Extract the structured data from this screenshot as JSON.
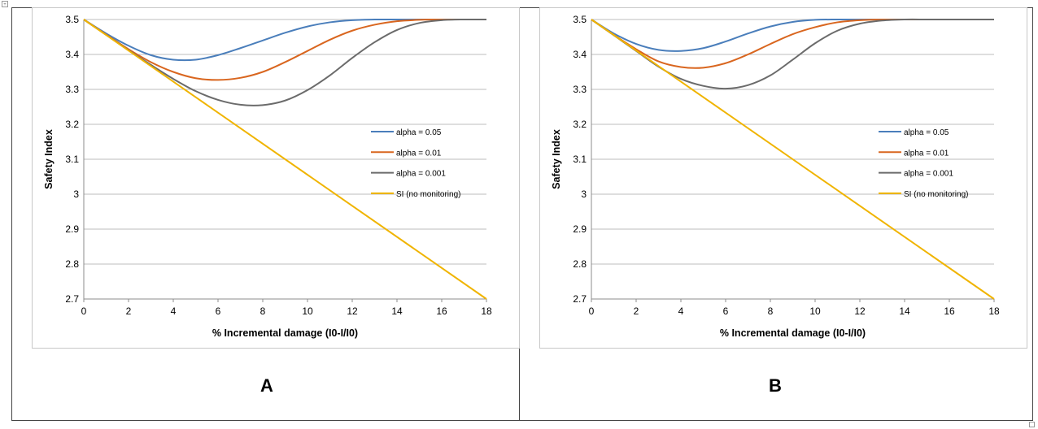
{
  "figure": {
    "labels": [
      "A",
      "B"
    ]
  },
  "chart_data": [
    {
      "type": "line",
      "panel": "A",
      "xlabel": "% Incremental damage (I0-I/I0)",
      "ylabel": "Safety Index",
      "xlim": [
        0,
        18
      ],
      "ylim": [
        2.7,
        3.5
      ],
      "xticks": [
        0,
        2,
        4,
        6,
        8,
        10,
        12,
        14,
        16,
        18
      ],
      "yticks": [
        2.7,
        2.8,
        2.9,
        3,
        3.1,
        3.2,
        3.3,
        3.4,
        3.5
      ],
      "ytick_labels": [
        "2.7",
        "2.8",
        "2.9",
        "3",
        "3.1",
        "3.2",
        "3.3",
        "3.4",
        "3.5"
      ],
      "grid": true,
      "legend_position": "right",
      "series": [
        {
          "name": "alpha = 0.05",
          "color": "#4a7ebb",
          "x": [
            0,
            1,
            2,
            3,
            4,
            5,
            6,
            7,
            8,
            9,
            10,
            11,
            12,
            13,
            14,
            15,
            16,
            17,
            18
          ],
          "values": [
            3.5,
            3.46,
            3.425,
            3.398,
            3.385,
            3.385,
            3.398,
            3.418,
            3.44,
            3.462,
            3.48,
            3.492,
            3.498,
            3.5,
            3.5,
            3.5,
            3.5,
            3.5,
            3.5
          ]
        },
        {
          "name": "alpha = 0.01",
          "color": "#d9661f",
          "x": [
            0,
            1,
            2,
            3,
            4,
            5,
            6,
            7,
            8,
            9,
            10,
            11,
            12,
            13,
            14,
            15,
            16,
            17,
            18
          ],
          "values": [
            3.5,
            3.457,
            3.415,
            3.378,
            3.35,
            3.332,
            3.327,
            3.333,
            3.35,
            3.378,
            3.41,
            3.442,
            3.468,
            3.485,
            3.495,
            3.499,
            3.5,
            3.5,
            3.5
          ]
        },
        {
          "name": "alpha = 0.001",
          "color": "#6b6b6b",
          "x": [
            0,
            1,
            2,
            3,
            4,
            5,
            6,
            7,
            8,
            9,
            10,
            11,
            12,
            13,
            14,
            15,
            16,
            17,
            18
          ],
          "values": [
            3.5,
            3.456,
            3.412,
            3.37,
            3.33,
            3.295,
            3.27,
            3.256,
            3.255,
            3.268,
            3.298,
            3.34,
            3.39,
            3.435,
            3.47,
            3.49,
            3.498,
            3.5,
            3.5
          ]
        },
        {
          "name": "SI (no monitoring)",
          "color": "#f0b400",
          "x": [
            0,
            18
          ],
          "values": [
            3.5,
            2.7
          ]
        }
      ]
    },
    {
      "type": "line",
      "panel": "B",
      "xlabel": "% Incremental damage (I0-I/I0)",
      "ylabel": "Safety Index",
      "xlim": [
        0,
        18
      ],
      "ylim": [
        2.7,
        3.5
      ],
      "xticks": [
        0,
        2,
        4,
        6,
        8,
        10,
        12,
        14,
        16,
        18
      ],
      "yticks": [
        2.7,
        2.8,
        2.9,
        3,
        3.1,
        3.2,
        3.3,
        3.4,
        3.5
      ],
      "ytick_labels": [
        "2.7",
        "2.8",
        "2.9",
        "3",
        "3.1",
        "3.2",
        "3.3",
        "3.4",
        "3.5"
      ],
      "grid": true,
      "legend_position": "right",
      "series": [
        {
          "name": "alpha = 0.05",
          "color": "#4a7ebb",
          "x": [
            0,
            1,
            2,
            3,
            4,
            5,
            6,
            7,
            8,
            9,
            10,
            11,
            12,
            13,
            14,
            15,
            16,
            17,
            18
          ],
          "values": [
            3.5,
            3.46,
            3.43,
            3.413,
            3.41,
            3.418,
            3.437,
            3.46,
            3.48,
            3.493,
            3.499,
            3.5,
            3.5,
            3.5,
            3.5,
            3.5,
            3.5,
            3.5,
            3.5
          ]
        },
        {
          "name": "alpha = 0.01",
          "color": "#d9661f",
          "x": [
            0,
            1,
            2,
            3,
            4,
            5,
            6,
            7,
            8,
            9,
            10,
            11,
            12,
            13,
            14,
            15,
            16,
            17,
            18
          ],
          "values": [
            3.5,
            3.456,
            3.415,
            3.38,
            3.364,
            3.362,
            3.375,
            3.4,
            3.43,
            3.458,
            3.478,
            3.492,
            3.498,
            3.5,
            3.5,
            3.5,
            3.5,
            3.5,
            3.5
          ]
        },
        {
          "name": "alpha = 0.001",
          "color": "#6b6b6b",
          "x": [
            0,
            1,
            2,
            3,
            4,
            5,
            6,
            7,
            8,
            9,
            10,
            11,
            12,
            13,
            14,
            15,
            16,
            17,
            18
          ],
          "values": [
            3.5,
            3.455,
            3.41,
            3.365,
            3.33,
            3.31,
            3.302,
            3.312,
            3.34,
            3.385,
            3.432,
            3.468,
            3.488,
            3.497,
            3.5,
            3.5,
            3.5,
            3.5,
            3.5
          ]
        },
        {
          "name": "SI (no monitoring)",
          "color": "#f0b400",
          "x": [
            0,
            18
          ],
          "values": [
            3.5,
            2.7
          ]
        }
      ]
    }
  ]
}
